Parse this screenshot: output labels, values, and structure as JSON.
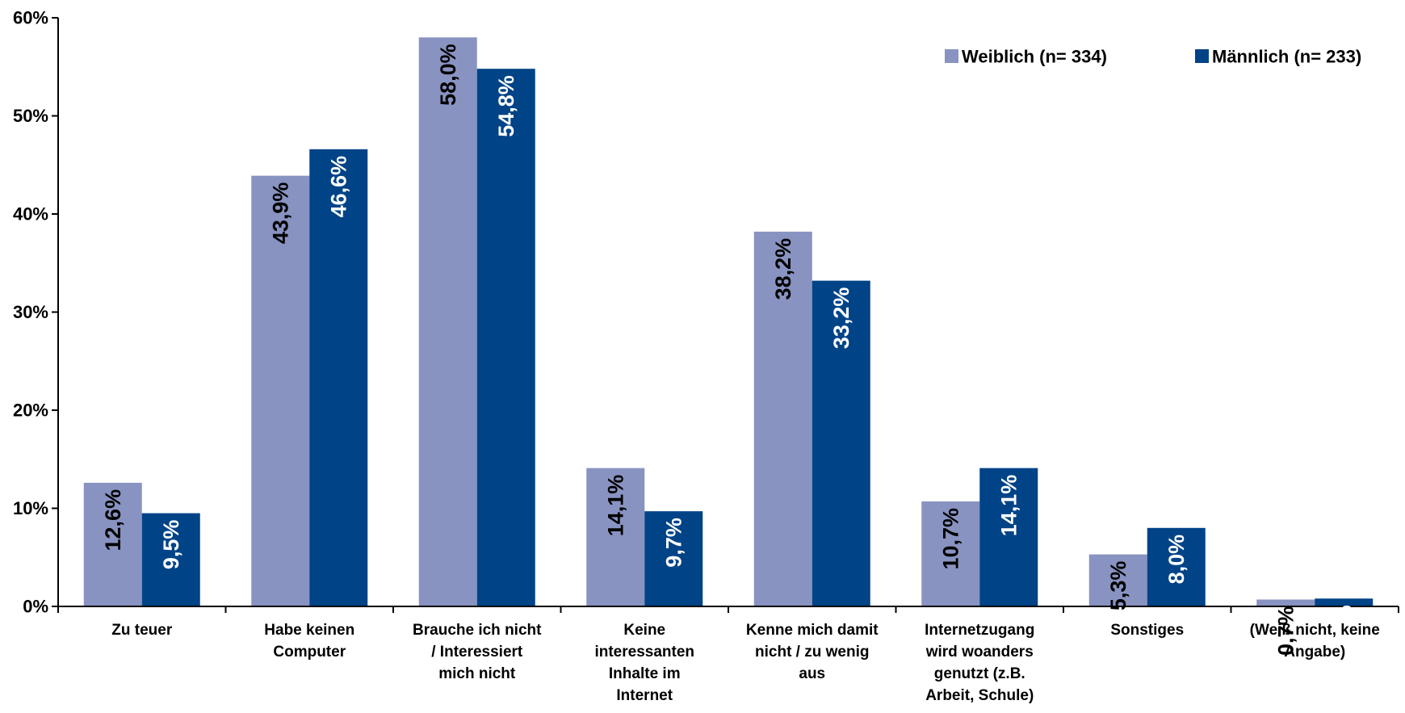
{
  "chart_data": {
    "type": "bar",
    "title": "",
    "xlabel": "",
    "ylabel": "",
    "ylim": [
      0,
      60
    ],
    "y_ticks": [
      "0%",
      "10%",
      "20%",
      "30%",
      "40%",
      "50%",
      "60%"
    ],
    "y_tick_values": [
      0,
      10,
      20,
      30,
      40,
      50,
      60
    ],
    "grid": false,
    "legend_position": "top-right",
    "categories": [
      [
        "Zu teuer"
      ],
      [
        "Habe keinen",
        "Computer"
      ],
      [
        "Brauche ich nicht",
        "/ Interessiert",
        "mich nicht"
      ],
      [
        "Keine",
        "interessanten",
        "Inhalte im",
        "Internet"
      ],
      [
        "Kenne mich damit",
        "nicht / zu wenig",
        "aus"
      ],
      [
        "Internetzugang",
        "wird woanders",
        "genutzt (z.B.",
        "Arbeit, Schule)"
      ],
      [
        "Sonstiges"
      ],
      [
        "(Weiß nicht, keine",
        "Angabe)"
      ]
    ],
    "series": [
      {
        "name": "Weiblich (n= 334)",
        "color": "#8893C1",
        "label_color": "#000000",
        "values": [
          12.6,
          43.9,
          58.0,
          14.1,
          38.2,
          10.7,
          5.3,
          0.7
        ],
        "labels": [
          "12,6%",
          "43,9%",
          "58,0%",
          "14,1%",
          "38,2%",
          "10,7%",
          "5,3%",
          "0,7%"
        ]
      },
      {
        "name": "Männlich (n= 233)",
        "color": "#004387",
        "label_color": "#ffffff",
        "values": [
          9.5,
          46.6,
          54.8,
          9.7,
          33.2,
          14.1,
          8.0,
          0.8
        ],
        "labels": [
          "9,5%",
          "46,6%",
          "54,8%",
          "9,7%",
          "33,2%",
          "14,1%",
          "8,0%",
          "0,8%"
        ]
      }
    ]
  }
}
